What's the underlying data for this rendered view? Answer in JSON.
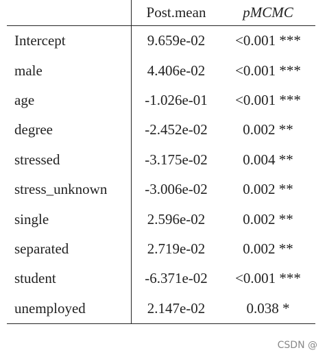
{
  "table": {
    "header": [
      "",
      "Post.mean",
      "pMCMC"
    ],
    "rows": [
      [
        "Intercept",
        "9.659e-02",
        "<0.001 ***"
      ],
      [
        "male",
        "4.406e-02",
        "<0.001 ***"
      ],
      [
        "age",
        "-1.026e-01",
        "<0.001 ***"
      ],
      [
        "degree",
        "-2.452e-02",
        "0.002 **"
      ],
      [
        "stressed",
        "-3.175e-02",
        "0.004 **"
      ],
      [
        "stress_unknown",
        "-3.006e-02",
        "0.002 **"
      ],
      [
        "single",
        "2.596e-02",
        "0.002 **"
      ],
      [
        "separated",
        "2.719e-02",
        "0.002 **"
      ],
      [
        "student",
        "-6.371e-02",
        "<0.001 ***"
      ],
      [
        "unemployed",
        "2.147e-02",
        "0.038 *"
      ]
    ]
  },
  "watermark": "CSDN @"
}
